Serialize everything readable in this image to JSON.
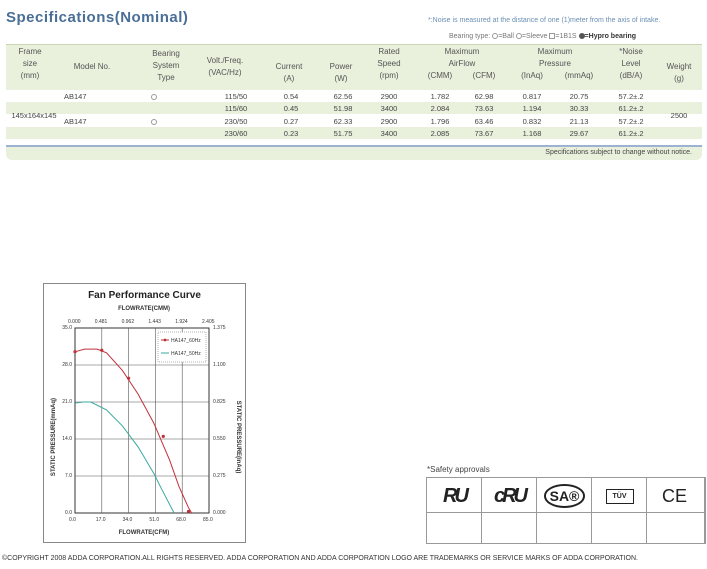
{
  "title": "Specifications(Nominal)",
  "noise_note": "*:Noise is measured at the distance of one (1)meter from the axis of intake.",
  "bearing_legend": {
    "label": "Bearing type:",
    "ball": "=Ball",
    "sleeve": "=Sleeve",
    "b1s": "=1B1S",
    "hypro": "=Hypro bearing"
  },
  "table": {
    "headers": {
      "frame_size": [
        "Frame",
        "size",
        "(mm)"
      ],
      "model": "Model No.",
      "bearing": [
        "Bearing",
        "System",
        "Type"
      ],
      "volt": [
        "Volt./Freq.",
        "(VAC/Hz)"
      ],
      "current": [
        "Current",
        "(A)"
      ],
      "power": [
        "Power",
        "(W)"
      ],
      "speed": [
        "Rated",
        "Speed",
        "(rpm)"
      ],
      "airflow": "Maximum",
      "airflow2": "AirFlow",
      "airflow_cmm": "(CMM)",
      "airflow_cfm": "(CFM)",
      "pressure": "Maximum",
      "pressure2": "Pressure",
      "pressure_inaq": "(InAq)",
      "pressure_mmaq": "(mmAq)",
      "noise": [
        "*Noise",
        "Level",
        "(dB/A)"
      ],
      "weight": [
        "Weight",
        "(g)"
      ]
    },
    "frame_size_value": "145x164x145",
    "weight_value": "2500",
    "rows": [
      {
        "model": "AB147",
        "volt": "115/50",
        "current": "0.54",
        "power": "62.56",
        "speed": "2900",
        "cmm": "1.782",
        "cfm": "62.98",
        "inaq": "0.817",
        "mmaq": "20.75",
        "noise": "57.2±.2"
      },
      {
        "model": "",
        "volt": "115/60",
        "current": "0.45",
        "power": "51.98",
        "speed": "3400",
        "cmm": "2.084",
        "cfm": "73.63",
        "inaq": "1.194",
        "mmaq": "30.33",
        "noise": "61.2±.2"
      },
      {
        "model": "AB147",
        "volt": "230/50",
        "current": "0.27",
        "power": "62.33",
        "speed": "2900",
        "cmm": "1.796",
        "cfm": "63.46",
        "inaq": "0.832",
        "mmaq": "21.13",
        "noise": "57.2±.2"
      },
      {
        "model": "",
        "volt": "230/60",
        "current": "0.23",
        "power": "51.75",
        "speed": "3400",
        "cmm": "2.085",
        "cfm": "73.67",
        "inaq": "1.168",
        "mmaq": "29.67",
        "noise": "61.2±.2"
      }
    ],
    "footnote": "Specifications subject to change without notice."
  },
  "chart_data": {
    "type": "line",
    "title": "Fan Performance Curve",
    "xlabel": "FLOWRATE(CFM)",
    "x2label": "FLOWRATE(CMM)",
    "ylabel": "STATIC PRESSURE(mmAq)",
    "y2label": "STATIC PRESSURE(inAq)",
    "xlim": [
      0,
      85
    ],
    "ylim": [
      0,
      35
    ],
    "x_ticks": [
      "0.0",
      "17.0",
      "34.0",
      "51.0",
      "68.0",
      "85.0"
    ],
    "x2_ticks": [
      "0.000",
      "0.481",
      "0.962",
      "1.443",
      "1.924",
      "2.405"
    ],
    "y_ticks": [
      "0.0",
      "7.0",
      "14.0",
      "21.0",
      "28.0",
      "35.0"
    ],
    "y2_ticks": [
      "0.000",
      "0.275",
      "0.550",
      "0.825",
      "1.100",
      "1.375"
    ],
    "legend": "top-right",
    "grid": true,
    "series": [
      {
        "name": "HA147_60Hz",
        "color": "#c0303a",
        "marker": true,
        "x": [
          0,
          6,
          14,
          20,
          30,
          40,
          50,
          60,
          66,
          72,
          74
        ],
        "y": [
          30.5,
          31.0,
          31.0,
          30.3,
          27.0,
          22.5,
          17.0,
          10.0,
          5.0,
          1.0,
          0
        ]
      },
      {
        "name": "HA147_50Hz",
        "color": "#3aa8a0",
        "marker": false,
        "x": [
          0,
          5,
          10,
          20,
          30,
          40,
          50,
          55,
          62,
          63
        ],
        "y": [
          20.8,
          21.0,
          21.0,
          19.5,
          16.5,
          12.5,
          7.5,
          4.5,
          0.5,
          0
        ]
      }
    ],
    "markers": [
      {
        "x": 0,
        "y": 30.5
      },
      {
        "x": 17,
        "y": 30.8
      },
      {
        "x": 34,
        "y": 25.5
      },
      {
        "x": 56,
        "y": 14.5
      },
      {
        "x": 72,
        "y": 0.3
      }
    ]
  },
  "safety": {
    "label": "*Safety approvals",
    "logos": [
      {
        "icon": "ul-recognized-icon",
        "text": "RU"
      },
      {
        "icon": "cul-recognized-icon",
        "text": "cRU"
      },
      {
        "icon": "csa-icon",
        "text": "SA®"
      },
      {
        "icon": "tuv-icon",
        "text": "TÜV"
      },
      {
        "icon": "ce-mark-icon",
        "text": "CE"
      }
    ]
  },
  "copyright": "©COPYRIGHT 2008 ADDA CORPORATION.ALL RIGHTS RESERVED. ADDA CORPORATION AND ADDA  CORPORATION LOGO ARE TRADEMARKS OR SERVICE MARKS OF ADDA CORPORATION."
}
